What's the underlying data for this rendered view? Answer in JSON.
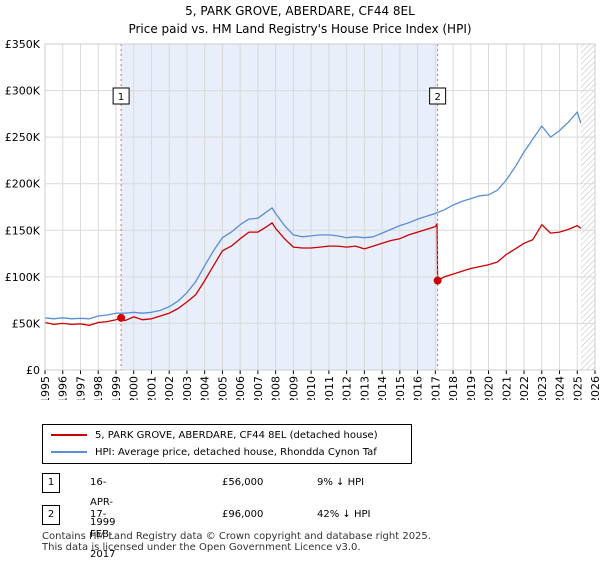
{
  "chart_data": {
    "type": "line",
    "title": "5, PARK GROVE, ABERDARE, CF44 8EL",
    "subtitle": "Price paid vs. HM Land Registry's House Price Index (HPI)",
    "xlim": [
      1995,
      2026
    ],
    "ylim": [
      0,
      350000
    ],
    "y_ticks": [
      {
        "value": 0,
        "label": "£0"
      },
      {
        "value": 50000,
        "label": "£50K"
      },
      {
        "value": 100000,
        "label": "£100K"
      },
      {
        "value": 150000,
        "label": "£150K"
      },
      {
        "value": 200000,
        "label": "£200K"
      },
      {
        "value": 250000,
        "label": "£250K"
      },
      {
        "value": 300000,
        "label": "£300K"
      },
      {
        "value": 350000,
        "label": "£350K"
      }
    ],
    "x_ticks": [
      "1995",
      "1996",
      "1997",
      "1998",
      "1999",
      "2000",
      "2001",
      "2002",
      "2003",
      "2004",
      "2005",
      "2006",
      "2007",
      "2008",
      "2009",
      "2010",
      "2011",
      "2012",
      "2013",
      "2014",
      "2015",
      "2016",
      "2017",
      "2018",
      "2019",
      "2020",
      "2021",
      "2022",
      "2023",
      "2024",
      "2025",
      "2026"
    ],
    "grid": true,
    "shaded_range": [
      1999.29,
      2017.13
    ],
    "hatched_from": 2025.2,
    "series": [
      {
        "name": "5, PARK GROVE, ABERDARE, CF44 8EL (detached house)",
        "color": "#cc0000",
        "x": [
          1995.0,
          1995.5,
          1996.0,
          1996.5,
          1997.0,
          1997.5,
          1998.0,
          1998.5,
          1999.0,
          1999.29,
          1999.5,
          2000.0,
          2000.5,
          2001.0,
          2001.5,
          2002.0,
          2002.5,
          2003.0,
          2003.5,
          2004.0,
          2004.5,
          2005.0,
          2005.5,
          2006.0,
          2006.5,
          2007.0,
          2007.5,
          2007.8,
          2008.0,
          2008.5,
          2009.0,
          2009.5,
          2010.0,
          2010.5,
          2011.0,
          2011.5,
          2012.0,
          2012.5,
          2013.0,
          2013.5,
          2014.0,
          2014.5,
          2015.0,
          2015.5,
          2016.0,
          2016.5,
          2017.0,
          2017.1,
          2017.13,
          2017.5,
          2018.0,
          2018.5,
          2019.0,
          2019.5,
          2020.0,
          2020.5,
          2021.0,
          2021.5,
          2022.0,
          2022.5,
          2023.0,
          2023.5,
          2024.0,
          2024.5,
          2025.0,
          2025.2
        ],
        "values": [
          51000,
          49000,
          50000,
          49000,
          49500,
          48000,
          51000,
          52000,
          54000,
          56000,
          53000,
          57000,
          54000,
          55000,
          58000,
          61000,
          66000,
          73000,
          81000,
          96000,
          112000,
          128000,
          133000,
          141000,
          148000,
          148000,
          154000,
          158000,
          152000,
          141000,
          132000,
          131000,
          131000,
          132000,
          133000,
          133000,
          132000,
          133000,
          130000,
          133000,
          136000,
          139000,
          141000,
          145000,
          148000,
          151000,
          154000,
          157000,
          96000,
          100000,
          103000,
          106000,
          109000,
          111000,
          113000,
          116000,
          124000,
          130000,
          136000,
          140000,
          156000,
          147000,
          148000,
          151000,
          155000,
          152000
        ]
      },
      {
        "name": "HPI: Average price, detached house, Rhondda Cynon Taf",
        "color": "#5b8ed6",
        "x": [
          1995.0,
          1995.5,
          1996.0,
          1996.5,
          1997.0,
          1997.5,
          1998.0,
          1998.5,
          1999.0,
          1999.5,
          2000.0,
          2000.5,
          2001.0,
          2001.5,
          2002.0,
          2002.5,
          2003.0,
          2003.5,
          2004.0,
          2004.5,
          2005.0,
          2005.5,
          2006.0,
          2006.5,
          2007.0,
          2007.5,
          2007.8,
          2008.0,
          2008.5,
          2009.0,
          2009.5,
          2010.0,
          2010.5,
          2011.0,
          2011.5,
          2012.0,
          2012.5,
          2013.0,
          2013.5,
          2014.0,
          2014.5,
          2015.0,
          2015.5,
          2016.0,
          2016.5,
          2017.0,
          2017.5,
          2018.0,
          2018.5,
          2019.0,
          2019.5,
          2020.0,
          2020.5,
          2021.0,
          2021.5,
          2022.0,
          2022.5,
          2023.0,
          2023.5,
          2024.0,
          2024.5,
          2025.0,
          2025.2
        ],
        "values": [
          56000,
          55000,
          56000,
          55000,
          55500,
          55000,
          58000,
          59000,
          61000,
          61000,
          62000,
          61000,
          62000,
          64000,
          68000,
          74000,
          83000,
          95000,
          112000,
          128000,
          142000,
          148000,
          156000,
          162000,
          163000,
          170000,
          174000,
          168000,
          155000,
          145000,
          143000,
          144000,
          145000,
          145000,
          144000,
          142000,
          143000,
          142000,
          143000,
          147000,
          151000,
          155000,
          158000,
          162000,
          165000,
          168000,
          172000,
          177000,
          181000,
          184000,
          187000,
          188000,
          193000,
          204000,
          218000,
          234000,
          248000,
          262000,
          250000,
          257000,
          266000,
          277000,
          265000
        ]
      }
    ],
    "sale_points": [
      {
        "label": "1",
        "x": 1999.29,
        "value": 56000
      },
      {
        "label": "2",
        "x": 2017.13,
        "value": 96000
      }
    ]
  },
  "legend": {
    "series1": "5, PARK GROVE, ABERDARE, CF44 8EL (detached house)",
    "series2": "HPI: Average price, detached house, Rhondda Cynon Taf"
  },
  "transactions": [
    {
      "num": "1",
      "date": "16-APR-1999",
      "price": "£56,000",
      "hpi": "9% ↓ HPI"
    },
    {
      "num": "2",
      "date": "17-FEB-2017",
      "price": "£96,000",
      "hpi": "42% ↓ HPI"
    }
  ],
  "footer": {
    "line1": "Contains HM Land Registry data © Crown copyright and database right 2025.",
    "line2": "This data is licensed under the Open Government Licence v3.0."
  }
}
